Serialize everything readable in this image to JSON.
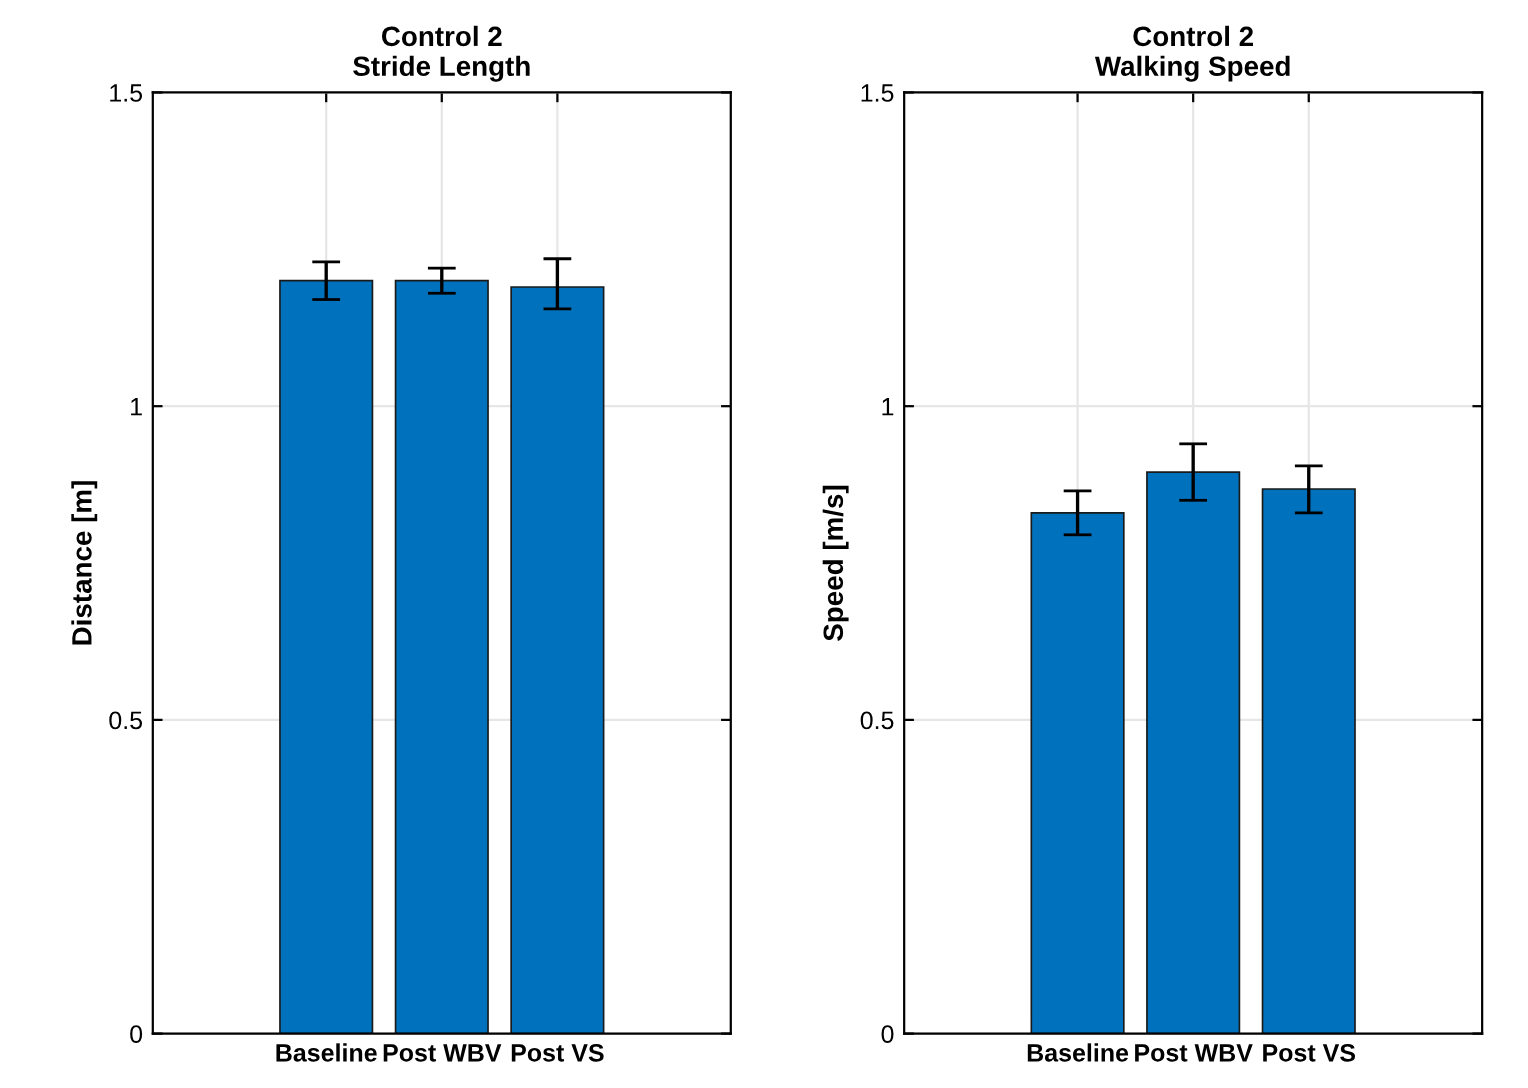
{
  "chart_data": [
    {
      "type": "bar",
      "title": "Control 2\nStride Length",
      "ylabel": "Distance [m]",
      "categories": [
        "Baseline",
        "Post WBV",
        "Post VS"
      ],
      "values": [
        1.2,
        1.2,
        1.19
      ],
      "errors": [
        [
          1.17,
          1.23
        ],
        [
          1.18,
          1.22
        ],
        [
          1.155,
          1.235
        ]
      ],
      "color": "#0072bd",
      "ylim": [
        0,
        1.5
      ],
      "yticks": [
        0,
        0.5,
        1,
        1.5
      ],
      "grid": true
    },
    {
      "type": "bar",
      "title": "Control 2\nWalking Speed",
      "ylabel": "Speed [m/s]",
      "categories": [
        "Baseline",
        "Post WBV",
        "Post VS"
      ],
      "values": [
        0.83,
        0.895,
        0.868
      ],
      "errors": [
        [
          0.795,
          0.865
        ],
        [
          0.85,
          0.94
        ],
        [
          0.83,
          0.905
        ]
      ],
      "color": "#0072bd",
      "ylim": [
        0,
        1.5
      ],
      "yticks": [
        0,
        0.5,
        1,
        1.5
      ],
      "grid": true
    }
  ]
}
